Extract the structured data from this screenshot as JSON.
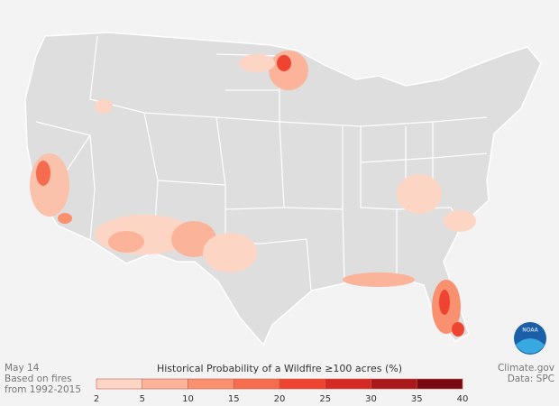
{
  "date": "May 14",
  "note": [
    "Based on fires",
    "from 1992-2015"
  ],
  "legend": {
    "title": "Historical Probability of a Wildfire ≥100 acres (%)",
    "bins": [
      2,
      5,
      10,
      15,
      20,
      25,
      30,
      35,
      40
    ],
    "colors": [
      "#fdd5c4",
      "#fbb49a",
      "#f9906f",
      "#f56c4f",
      "#ef4431",
      "#d42a22",
      "#aa1a1c",
      "#7a0a12"
    ]
  },
  "credits": [
    "Climate.gov",
    "Data: SPC"
  ],
  "logo": "NOAA"
}
